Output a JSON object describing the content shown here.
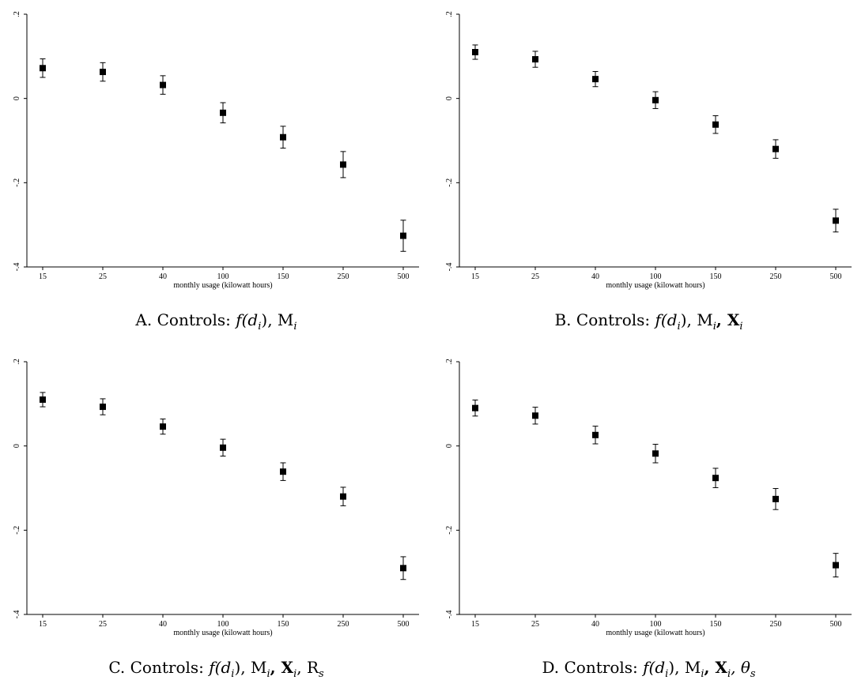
{
  "chart_data": [
    {
      "type": "scatter",
      "panel_label": "A.",
      "caption_prefix": "Controls:",
      "xlabel": "monthly usage (kilowatt hours)",
      "x_categories": [
        "15",
        "25",
        "40",
        "100",
        "150",
        "250",
        "500"
      ],
      "ylabel": "",
      "ylim": [
        -0.4,
        0.2
      ],
      "yticks": [
        0.2,
        0,
        -0.2,
        -0.4
      ],
      "ytick_labels": [
        ".2",
        "0",
        "-.2",
        "-.4"
      ],
      "series": [
        {
          "values": [
            0.072,
            0.063,
            0.032,
            -0.034,
            -0.092,
            -0.157,
            -0.326
          ],
          "ci_low": [
            0.05,
            0.041,
            0.01,
            -0.058,
            -0.118,
            -0.188,
            -0.363
          ],
          "ci_high": [
            0.094,
            0.085,
            0.054,
            -0.01,
            -0.066,
            -0.126,
            -0.289
          ]
        }
      ],
      "grid": false
    },
    {
      "type": "scatter",
      "panel_label": "B.",
      "caption_prefix": "Controls:",
      "xlabel": "monthly usage (kilowatt hours)",
      "x_categories": [
        "15",
        "25",
        "40",
        "100",
        "150",
        "250",
        "500"
      ],
      "ylabel": "",
      "ylim": [
        -0.4,
        0.2
      ],
      "yticks": [
        0.2,
        0,
        -0.2,
        -0.4
      ],
      "ytick_labels": [
        ".2",
        "0",
        "-.2",
        "-.4"
      ],
      "series": [
        {
          "values": [
            0.11,
            0.093,
            0.046,
            -0.004,
            -0.062,
            -0.12,
            -0.29
          ],
          "ci_low": [
            0.093,
            0.074,
            0.028,
            -0.024,
            -0.083,
            -0.142,
            -0.317
          ],
          "ci_high": [
            0.127,
            0.112,
            0.064,
            0.016,
            -0.041,
            -0.098,
            -0.263
          ]
        }
      ],
      "grid": false
    },
    {
      "type": "scatter",
      "panel_label": "C.",
      "caption_prefix": "Controls:",
      "xlabel": "monthly usage (kilowatt hours)",
      "x_categories": [
        "15",
        "25",
        "40",
        "100",
        "150",
        "250",
        "500"
      ],
      "ylabel": "",
      "ylim": [
        -0.4,
        0.2
      ],
      "yticks": [
        0.2,
        0,
        -0.2,
        -0.4
      ],
      "ytick_labels": [
        ".2",
        "0",
        "-.2",
        "-.4"
      ],
      "series": [
        {
          "values": [
            0.11,
            0.093,
            0.046,
            -0.004,
            -0.061,
            -0.12,
            -0.29
          ],
          "ci_low": [
            0.093,
            0.074,
            0.028,
            -0.024,
            -0.082,
            -0.142,
            -0.317
          ],
          "ci_high": [
            0.127,
            0.112,
            0.064,
            0.016,
            -0.04,
            -0.098,
            -0.263
          ]
        }
      ],
      "grid": false
    },
    {
      "type": "scatter",
      "panel_label": "D.",
      "caption_prefix": "Controls:",
      "xlabel": "monthly usage (kilowatt hours)",
      "x_categories": [
        "15",
        "25",
        "40",
        "100",
        "150",
        "250",
        "500"
      ],
      "ylabel": "",
      "ylim": [
        -0.4,
        0.2
      ],
      "yticks": [
        0.2,
        0,
        -0.2,
        -0.4
      ],
      "ytick_labels": [
        ".2",
        "0",
        "-.2",
        "-.4"
      ],
      "series": [
        {
          "values": [
            0.09,
            0.072,
            0.026,
            -0.018,
            -0.076,
            -0.126,
            -0.283
          ],
          "ci_low": [
            0.071,
            0.052,
            0.005,
            -0.04,
            -0.099,
            -0.151,
            -0.311
          ],
          "ci_high": [
            0.109,
            0.092,
            0.047,
            0.004,
            -0.053,
            -0.101,
            -0.255
          ]
        }
      ],
      "grid": false
    }
  ],
  "captions": [
    {
      "label": "A.",
      "prefix": "Controls:",
      "terms": [
        "f(d",
        "i",
        "), M",
        "i"
      ]
    },
    {
      "label": "B.",
      "prefix": "Controls:",
      "terms": [
        "f(d",
        "i",
        "), M",
        "i",
        ", X",
        "i"
      ]
    },
    {
      "label": "C.",
      "prefix": "Controls:",
      "terms": [
        "f(d",
        "i",
        "), M",
        "i",
        ", X",
        "i",
        ", R",
        "s"
      ]
    },
    {
      "label": "D.",
      "prefix": "Controls:",
      "terms": [
        "f(d",
        "i",
        "), M",
        "i",
        ", X",
        "i",
        ", θ",
        "s"
      ]
    }
  ]
}
